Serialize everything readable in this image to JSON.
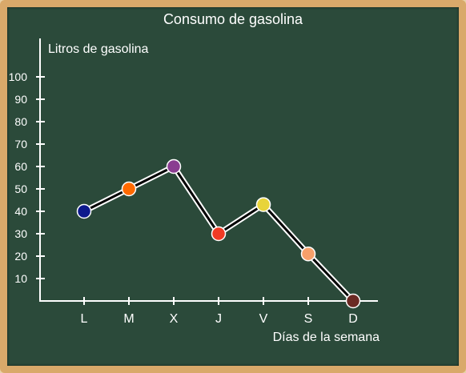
{
  "chart_data": {
    "type": "line",
    "title": "Consumo de gasolina",
    "xlabel": "Días de la semana",
    "ylabel": "Litros de gasolina",
    "categories": [
      "L",
      "M",
      "X",
      "J",
      "V",
      "S",
      "D"
    ],
    "yticks": [
      10,
      20,
      30,
      40,
      50,
      60,
      70,
      80,
      90,
      100
    ],
    "ylim": [
      0,
      100
    ],
    "grid": false,
    "series": [
      {
        "values": [
          40,
          50,
          60,
          30,
          43,
          21,
          0
        ]
      }
    ],
    "point_colors": [
      "#0d1a8c",
      "#ff6a00",
      "#8a3d91",
      "#f03a24",
      "#e8d43a",
      "#f7a06a",
      "#6b2a24"
    ],
    "line_color": "#000000",
    "axis_color": "#ffffff",
    "background_color": "#2b4a3a",
    "frame_color": "#d9a96a"
  }
}
